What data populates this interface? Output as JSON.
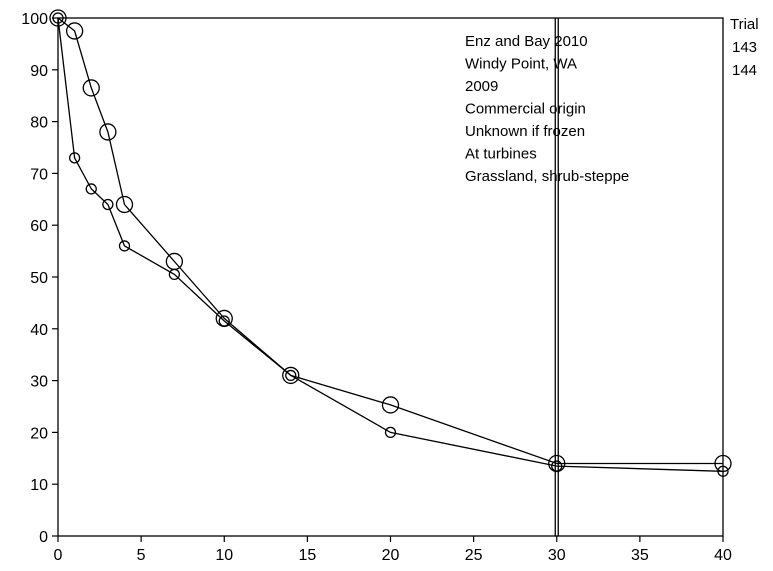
{
  "chart_data": {
    "type": "scatter",
    "title": "",
    "xlabel": "",
    "ylabel": "",
    "xlim": [
      0,
      40
    ],
    "ylim": [
      0,
      100
    ],
    "x_ticks": [
      0,
      5,
      10,
      15,
      20,
      25,
      30,
      35,
      40
    ],
    "y_ticks": [
      0,
      10,
      20,
      30,
      40,
      50,
      60,
      70,
      80,
      90,
      100
    ],
    "grid": false,
    "legend": {
      "title": "Trial",
      "placement": "top-right-outside",
      "entries": [
        "143",
        "144"
      ]
    },
    "annotations": [
      "Enz and Bay 2010",
      "Windy Point, WA",
      "2009",
      "Commercial origin",
      "Unknown if frozen",
      "At turbines",
      "Grassland, shrub-steppe"
    ],
    "vertical_lines": [
      30
    ],
    "series": [
      {
        "name": "143",
        "marker": "large-circle",
        "x": [
          0,
          1,
          2,
          3,
          4,
          7,
          10,
          14,
          20,
          30,
          40
        ],
        "y": [
          100,
          97.5,
          86.5,
          78,
          64,
          53,
          42,
          31,
          25.3,
          14,
          14
        ]
      },
      {
        "name": "144",
        "marker": "small-circle",
        "x": [
          0,
          1,
          2,
          3,
          4,
          7,
          10,
          14,
          20,
          30,
          40
        ],
        "y": [
          100,
          73,
          67,
          64,
          56,
          50.5,
          41.5,
          31,
          20,
          13.5,
          12.5
        ]
      }
    ]
  }
}
